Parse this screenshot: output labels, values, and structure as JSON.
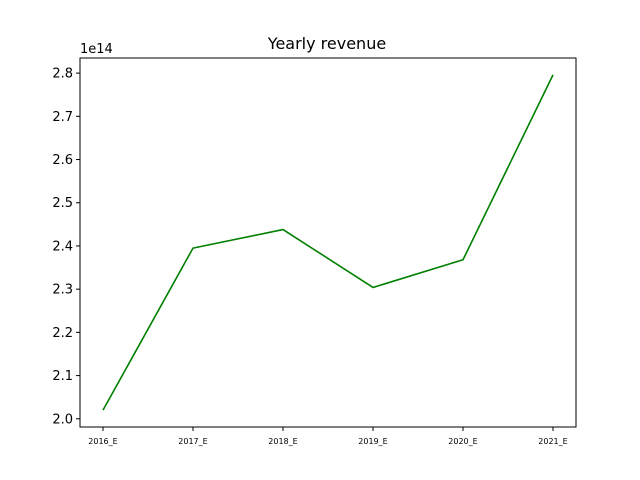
{
  "chart_data": {
    "type": "line",
    "title": "Yearly revenue",
    "xlabel": "",
    "ylabel": "",
    "y_offset_label": "1e14",
    "categories": [
      "2016_E",
      "2017_E",
      "2018_E",
      "2019_E",
      "2020_E",
      "2021_E"
    ],
    "series": [
      {
        "color": "#008000",
        "values": [
          202000000000000.0,
          239500000000000.0,
          243800000000000.0,
          230400000000000.0,
          236800000000000.0,
          279600000000000.0
        ]
      }
    ],
    "ylim": [
      198100000000000.0,
      283500000000000.0
    ],
    "yticks": [
      200000000000000.0,
      210000000000000.0,
      220000000000000.0,
      230000000000000.0,
      240000000000000.0,
      250000000000000.0,
      260000000000000.0,
      270000000000000.0,
      280000000000000.0
    ],
    "ytick_labels": [
      "2.0",
      "2.1",
      "2.2",
      "2.3",
      "2.4",
      "2.5",
      "2.6",
      "2.7",
      "2.8"
    ],
    "grid": false,
    "legend": "none"
  }
}
